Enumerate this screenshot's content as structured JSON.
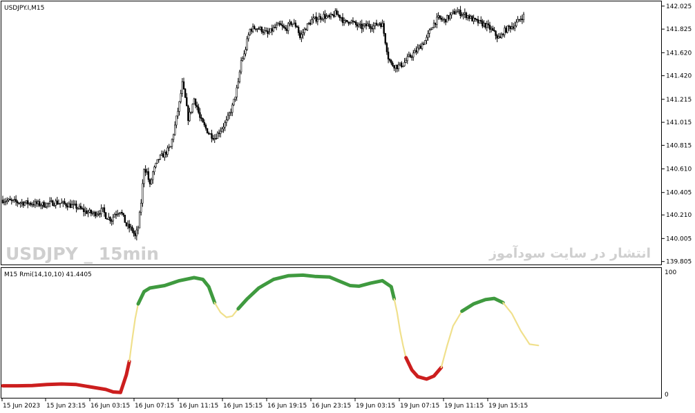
{
  "window": {
    "symbol_label": "USDJPY.I,M15",
    "watermark_left": "USDJPY _ 15min",
    "watermark_right": "انتشار در سایت سودآموز"
  },
  "chart_data": [
    {
      "type": "candlestick",
      "title": "USDJPY.I,M15",
      "y_ticks": [
        "142.025",
        "141.825",
        "141.620",
        "141.420",
        "141.215",
        "141.015",
        "140.815",
        "140.610",
        "140.405",
        "140.210",
        "140.005",
        "139.805"
      ],
      "ylim": [
        139.785,
        142.06
      ],
      "close_path": [
        [
          0,
          140.34
        ],
        [
          10,
          140.32
        ],
        [
          20,
          140.31
        ],
        [
          28,
          140.3
        ],
        [
          36,
          140.32
        ],
        [
          44,
          140.3
        ],
        [
          50,
          140.28
        ],
        [
          56,
          140.24
        ],
        [
          62,
          140.22
        ],
        [
          68,
          140.25
        ],
        [
          70,
          140.2
        ],
        [
          74,
          140.17
        ],
        [
          76,
          140.22
        ],
        [
          80,
          140.25
        ],
        [
          84,
          140.12
        ],
        [
          88,
          140.08
        ],
        [
          90,
          140.02
        ],
        [
          92,
          140.1
        ],
        [
          94,
          140.32
        ],
        [
          96,
          140.62
        ],
        [
          98,
          140.58
        ],
        [
          100,
          140.46
        ],
        [
          102,
          140.58
        ],
        [
          104,
          140.64
        ],
        [
          106,
          140.7
        ],
        [
          110,
          140.74
        ],
        [
          114,
          140.8
        ],
        [
          116,
          140.92
        ],
        [
          118,
          141.05
        ],
        [
          120,
          141.18
        ],
        [
          122,
          141.35
        ],
        [
          124,
          141.22
        ],
        [
          126,
          141.05
        ],
        [
          128,
          141.12
        ],
        [
          130,
          141.22
        ],
        [
          132,
          141.15
        ],
        [
          134,
          141.05
        ],
        [
          136,
          141.0
        ],
        [
          138,
          140.96
        ],
        [
          140,
          140.92
        ],
        [
          144,
          140.88
        ],
        [
          148,
          140.95
        ],
        [
          152,
          141.02
        ],
        [
          156,
          141.15
        ],
        [
          158,
          141.25
        ],
        [
          160,
          141.35
        ],
        [
          162,
          141.55
        ],
        [
          164,
          141.6
        ],
        [
          166,
          141.72
        ],
        [
          168,
          141.82
        ],
        [
          172,
          141.84
        ],
        [
          176,
          141.82
        ],
        [
          180,
          141.78
        ],
        [
          184,
          141.83
        ],
        [
          188,
          141.86
        ],
        [
          192,
          141.82
        ],
        [
          196,
          141.88
        ],
        [
          200,
          141.85
        ],
        [
          202,
          141.75
        ],
        [
          206,
          141.84
        ],
        [
          210,
          141.9
        ],
        [
          214,
          141.92
        ],
        [
          218,
          141.94
        ],
        [
          222,
          141.92
        ],
        [
          226,
          141.96
        ],
        [
          230,
          141.93
        ],
        [
          232,
          141.88
        ],
        [
          236,
          141.9
        ],
        [
          240,
          141.86
        ],
        [
          244,
          141.84
        ],
        [
          248,
          141.86
        ],
        [
          252,
          141.85
        ],
        [
          256,
          141.88
        ],
        [
          258,
          141.86
        ],
        [
          260,
          141.72
        ],
        [
          262,
          141.58
        ],
        [
          264,
          141.52
        ],
        [
          268,
          141.5
        ],
        [
          272,
          141.52
        ],
        [
          276,
          141.58
        ],
        [
          280,
          141.62
        ],
        [
          284,
          141.68
        ],
        [
          288,
          141.74
        ],
        [
          292,
          141.86
        ],
        [
          296,
          141.92
        ],
        [
          300,
          141.9
        ],
        [
          304,
          141.94
        ],
        [
          308,
          141.98
        ],
        [
          312,
          141.96
        ],
        [
          316,
          141.94
        ],
        [
          320,
          141.9
        ],
        [
          324,
          141.88
        ],
        [
          328,
          141.86
        ],
        [
          332,
          141.82
        ],
        [
          336,
          141.76
        ],
        [
          338,
          141.74
        ],
        [
          340,
          141.8
        ],
        [
          344,
          141.84
        ],
        [
          348,
          141.86
        ],
        [
          352,
          141.92
        ],
        [
          354,
          141.94
        ]
      ]
    },
    {
      "type": "line",
      "title": "M15 Rmi(14,10,10) 41.4405",
      "y_ticks": [
        "100",
        "0"
      ],
      "ylim": [
        0,
        100
      ],
      "colors": {
        "up": "#3f9a3f",
        "neutral": "#f0e08c",
        "down": "#cc1e1e"
      },
      "segments": [
        {
          "color": "down",
          "points": [
            [
              0,
              7
            ],
            [
              10,
              7
            ],
            [
              20,
              7.2
            ],
            [
              30,
              8
            ],
            [
              40,
              8.5
            ],
            [
              50,
              8
            ],
            [
              60,
              6
            ],
            [
              70,
              4
            ],
            [
              75,
              2
            ],
            [
              80,
              1.5
            ],
            [
              84,
              16
            ],
            [
              86,
              27
            ]
          ]
        },
        {
          "color": "neutral",
          "points": [
            [
              86,
              27
            ],
            [
              88,
              45
            ],
            [
              90,
              62
            ],
            [
              92,
              74
            ]
          ]
        },
        {
          "color": "up",
          "points": [
            [
              92,
              74
            ],
            [
              96,
              84
            ],
            [
              100,
              87
            ],
            [
              110,
              89
            ],
            [
              120,
              93
            ],
            [
              130,
              95.5
            ],
            [
              136,
              94
            ],
            [
              140,
              88
            ],
            [
              144,
              75
            ]
          ]
        },
        {
          "color": "neutral",
          "points": [
            [
              144,
              75
            ],
            [
              148,
              67
            ],
            [
              152,
              63
            ],
            [
              156,
              64
            ],
            [
              160,
              70
            ]
          ]
        },
        {
          "color": "up",
          "points": [
            [
              160,
              70
            ],
            [
              166,
              78
            ],
            [
              174,
              87
            ],
            [
              184,
              94
            ],
            [
              194,
              97
            ],
            [
              204,
              97.5
            ],
            [
              212,
              96.5
            ],
            [
              222,
              96
            ],
            [
              228,
              93
            ],
            [
              236,
              89
            ],
            [
              242,
              88.5
            ],
            [
              250,
              91
            ],
            [
              258,
              93
            ],
            [
              264,
              88
            ],
            [
              266,
              78
            ]
          ]
        },
        {
          "color": "neutral",
          "points": [
            [
              266,
              78
            ],
            [
              268,
              67
            ],
            [
              270,
              52
            ],
            [
              272,
              40
            ],
            [
              274,
              30
            ]
          ]
        },
        {
          "color": "down",
          "points": [
            [
              274,
              30
            ],
            [
              278,
              20
            ],
            [
              282,
              14.5
            ],
            [
              288,
              12.5
            ],
            [
              293,
              15
            ],
            [
              298,
              22
            ]
          ]
        },
        {
          "color": "neutral",
          "points": [
            [
              298,
              22
            ],
            [
              302,
              40
            ],
            [
              306,
              56
            ],
            [
              312,
              68
            ]
          ]
        },
        {
          "color": "up",
          "points": [
            [
              312,
              68
            ],
            [
              320,
              74
            ],
            [
              328,
              77.5
            ],
            [
              334,
              78.5
            ],
            [
              340,
              75
            ]
          ]
        },
        {
          "color": "neutral",
          "points": [
            [
              340,
              75
            ],
            [
              346,
              66
            ],
            [
              352,
              52
            ],
            [
              358,
              41
            ],
            [
              364,
              40
            ]
          ]
        }
      ]
    }
  ],
  "x_ticks": [
    "15 Jun 2023",
    "15 Jun 23:15",
    "16 Jun 03:15",
    "16 Jun 07:15",
    "16 Jun 11:15",
    "16 Jun 15:15",
    "16 Jun 19:15",
    "16 Jun 23:15",
    "19 Jun 03:15",
    "19 Jun 07:15",
    "19 Jun 11:15",
    "19 Jun 15:15"
  ]
}
